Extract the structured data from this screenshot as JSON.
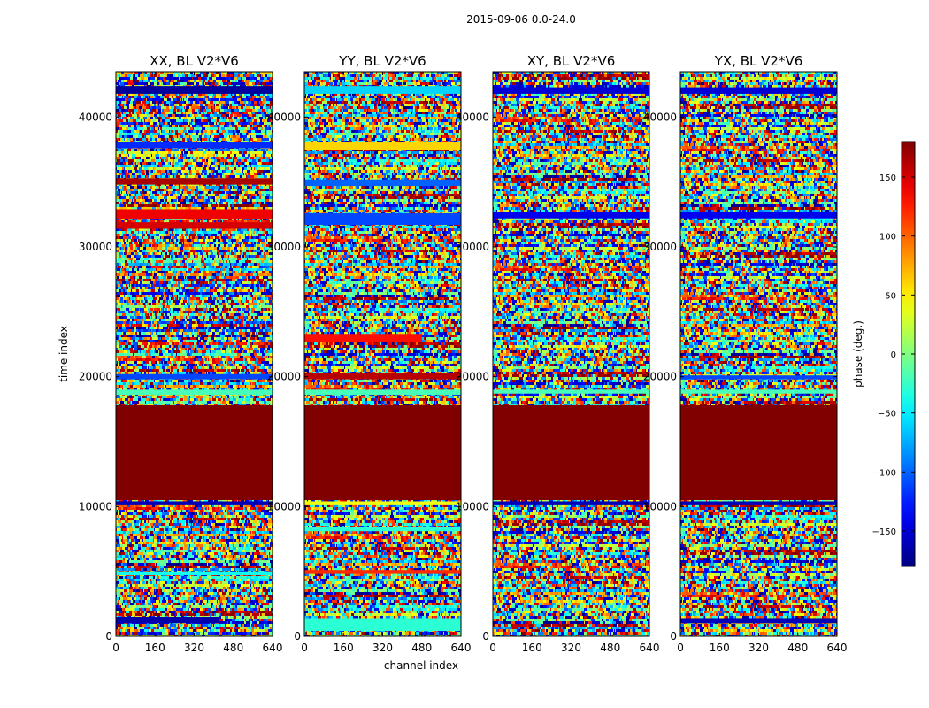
{
  "chart_data": {
    "type": "heatmap",
    "title": "2015-09-06 0.0-24.0",
    "xlabel": "channel index",
    "ylabel": "time index",
    "xlim": [
      0,
      640
    ],
    "ylim": [
      0,
      43500
    ],
    "x_ticks": [
      0,
      160,
      320,
      480,
      640
    ],
    "y_ticks": [
      0,
      10000,
      20000,
      30000,
      40000
    ],
    "colormap": "jet",
    "colorbar": {
      "label": "phase (deg.)",
      "range": [
        -180,
        180
      ],
      "ticks": [
        -150,
        -100,
        -50,
        0,
        50,
        100,
        150
      ],
      "tick_labels": [
        "−150",
        "−100",
        "−50",
        "0",
        "50",
        "100",
        "150"
      ]
    },
    "panels": [
      {
        "title": "XX, BL V2*V6",
        "constant_block": {
          "y_start": 10500,
          "y_end": 17800,
          "value": 180
        },
        "bands": [
          {
            "y_start": 41800,
            "y_end": 42400,
            "x_end": 640,
            "value": -170
          },
          {
            "y_start": 37600,
            "y_end": 38100,
            "x_end": 640,
            "value": -120
          },
          {
            "y_start": 34800,
            "y_end": 35300,
            "x_end": 640,
            "value": 165
          },
          {
            "y_start": 32100,
            "y_end": 32900,
            "x_end": 640,
            "value": 140
          },
          {
            "y_start": 31400,
            "y_end": 31900,
            "x_end": 640,
            "value": 150
          },
          {
            "y_start": 19800,
            "y_end": 20200,
            "x_end": 640,
            "value": -110
          },
          {
            "y_start": 18600,
            "y_end": 19000,
            "x_end": 640,
            "value": -20
          },
          {
            "y_start": 10100,
            "y_end": 10400,
            "x_end": 640,
            "value": -160
          },
          {
            "y_start": 4700,
            "y_end": 5000,
            "x_end": 640,
            "value": -40
          },
          {
            "y_start": 1000,
            "y_end": 1500,
            "x_end": 420,
            "value": -165
          }
        ]
      },
      {
        "title": "YY, BL V2*V6",
        "constant_block": {
          "y_start": 10500,
          "y_end": 17800,
          "value": 180
        },
        "bands": [
          {
            "y_start": 41800,
            "y_end": 42400,
            "x_end": 640,
            "value": -60
          },
          {
            "y_start": 37500,
            "y_end": 38100,
            "x_end": 640,
            "value": 60
          },
          {
            "y_start": 34700,
            "y_end": 35200,
            "x_end": 640,
            "value": -100
          },
          {
            "y_start": 31700,
            "y_end": 32600,
            "x_end": 640,
            "value": -110
          },
          {
            "y_start": 22700,
            "y_end": 23300,
            "x_end": 480,
            "value": 130
          },
          {
            "y_start": 19800,
            "y_end": 20300,
            "x_end": 640,
            "value": 160
          },
          {
            "y_start": 18600,
            "y_end": 19000,
            "x_end": 640,
            "value": -20
          },
          {
            "y_start": 10100,
            "y_end": 10400,
            "x_end": 640,
            "value": 40
          },
          {
            "y_start": 8100,
            "y_end": 8400,
            "x_end": 640,
            "value": -30
          },
          {
            "y_start": 4800,
            "y_end": 5100,
            "x_end": 640,
            "value": 120
          },
          {
            "y_start": 400,
            "y_end": 1400,
            "x_end": 640,
            "value": -30
          }
        ]
      },
      {
        "title": "XY, BL V2*V6",
        "constant_block": {
          "y_start": 10500,
          "y_end": 17800,
          "value": 180
        },
        "bands": [
          {
            "y_start": 41800,
            "y_end": 42300,
            "x_end": 640,
            "value": -150
          },
          {
            "y_start": 32200,
            "y_end": 32700,
            "x_end": 640,
            "value": -140
          },
          {
            "y_start": 18700,
            "y_end": 19000,
            "x_end": 640,
            "value": -20
          },
          {
            "y_start": 10100,
            "y_end": 10400,
            "x_end": 640,
            "value": -160
          }
        ]
      },
      {
        "title": "YX, BL V2*V6",
        "constant_block": {
          "y_start": 10500,
          "y_end": 17800,
          "value": 180
        },
        "bands": [
          {
            "y_start": 41800,
            "y_end": 42300,
            "x_end": 640,
            "value": -150
          },
          {
            "y_start": 32200,
            "y_end": 32700,
            "x_end": 640,
            "value": -140
          },
          {
            "y_start": 19800,
            "y_end": 20100,
            "x_end": 640,
            "value": -110
          },
          {
            "y_start": 18700,
            "y_end": 19000,
            "x_end": 640,
            "value": -20
          },
          {
            "y_start": 10100,
            "y_end": 10400,
            "x_end": 640,
            "value": -160
          },
          {
            "y_start": 1000,
            "y_end": 1400,
            "x_end": 640,
            "value": -160
          }
        ]
      }
    ]
  }
}
